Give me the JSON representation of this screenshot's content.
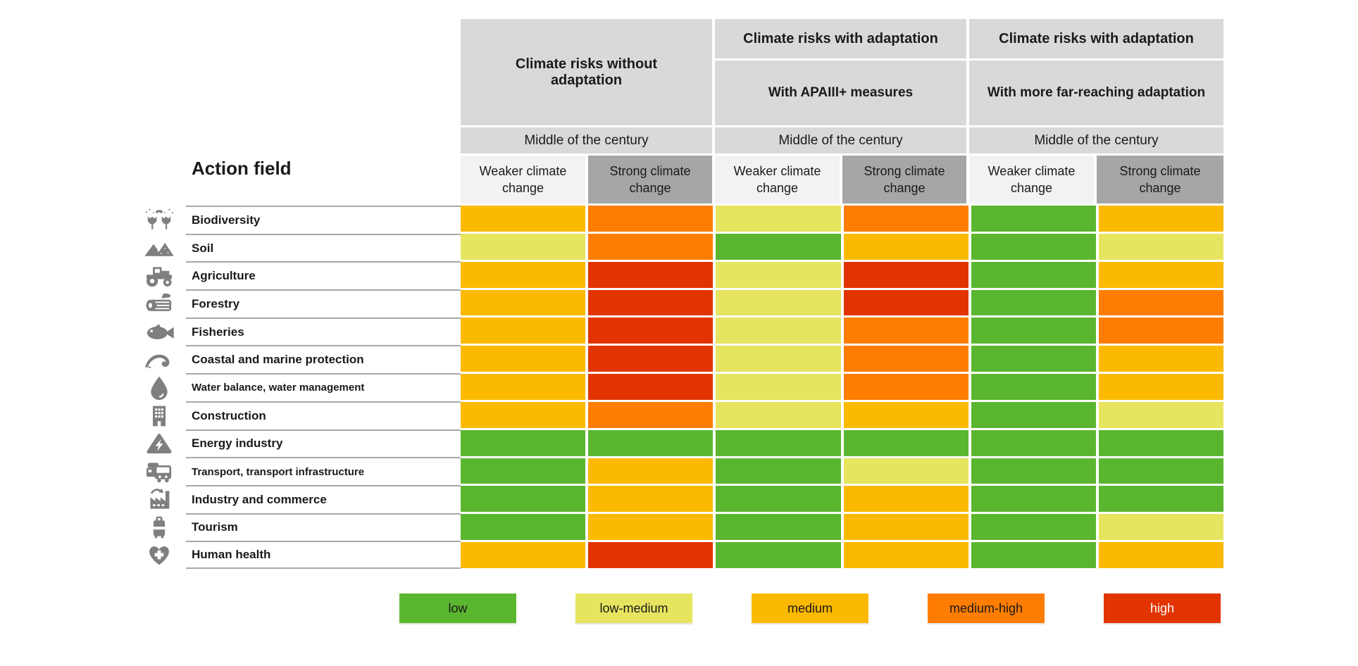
{
  "page": {
    "background": "#ffffff"
  },
  "chart_data": {
    "type": "heatmap",
    "title": "Action field",
    "column_groups": [
      {
        "title": "Climate risks without adaptation",
        "subtitle": "",
        "period": "Middle of the century"
      },
      {
        "title": "Climate risks with adaptation",
        "subtitle": "With APAIII+ measures",
        "period": "Middle of the century"
      },
      {
        "title": "Climate risks with adaptation",
        "subtitle": "With more far-reaching adaptation",
        "period": "Middle of the century"
      }
    ],
    "scenario_labels": [
      "Weaker climate change",
      "Strong climate change"
    ],
    "rows": [
      {
        "label": "Biodiversity",
        "icon": "flowers-butterfly-icon",
        "values": [
          "medium",
          "medium-high",
          "low-medium",
          "medium-high",
          "low",
          "medium"
        ]
      },
      {
        "label": "Soil",
        "icon": "mountains-icon",
        "values": [
          "low-medium",
          "medium-high",
          "low",
          "medium",
          "low",
          "low-medium"
        ]
      },
      {
        "label": "Agriculture",
        "icon": "tractor-icon",
        "values": [
          "medium",
          "high",
          "low-medium",
          "high",
          "low",
          "medium"
        ]
      },
      {
        "label": "Forestry",
        "icon": "log-icon",
        "values": [
          "medium",
          "high",
          "low-medium",
          "high",
          "low",
          "medium-high"
        ]
      },
      {
        "label": "Fisheries",
        "icon": "fish-icon",
        "values": [
          "medium",
          "high",
          "low-medium",
          "medium-high",
          "low",
          "medium-high"
        ]
      },
      {
        "label": "Coastal and marine protection",
        "icon": "wave-icon",
        "values": [
          "medium",
          "high",
          "low-medium",
          "medium-high",
          "low",
          "medium"
        ]
      },
      {
        "label": "Water balance, water management",
        "icon": "water-drop-icon",
        "values": [
          "medium",
          "high",
          "low-medium",
          "medium-high",
          "low",
          "medium"
        ]
      },
      {
        "label": "Construction",
        "icon": "building-icon",
        "values": [
          "medium",
          "medium-high",
          "low-medium",
          "medium",
          "low",
          "low-medium"
        ]
      },
      {
        "label": "Energy industry",
        "icon": "energy-warning-icon",
        "values": [
          "low",
          "low",
          "low",
          "low",
          "low",
          "low"
        ]
      },
      {
        "label": "Transport, transport infrastructure",
        "icon": "transport-icon",
        "values": [
          "low",
          "medium",
          "low",
          "low-medium",
          "low",
          "low"
        ]
      },
      {
        "label": "Industry and commerce",
        "icon": "factory-icon",
        "values": [
          "low",
          "medium",
          "low",
          "medium",
          "low",
          "low"
        ]
      },
      {
        "label": "Tourism",
        "icon": "suitcase-icon",
        "values": [
          "low",
          "medium",
          "low",
          "medium",
          "low",
          "low-medium"
        ]
      },
      {
        "label": "Human health",
        "icon": "heart-cross-icon",
        "values": [
          "medium",
          "high",
          "low",
          "medium",
          "low",
          "medium"
        ]
      }
    ],
    "levels": {
      "low": "#5bb62f",
      "low-medium": "#e7e45f",
      "medium": "#fbba00",
      "medium-high": "#ff7d00",
      "high": "#e23400"
    },
    "legend": [
      {
        "label": "low",
        "color": "#5bb62f",
        "text_color": "#1a1a1a"
      },
      {
        "label": "low-medium",
        "color": "#e7e45f",
        "text_color": "#1a1a1a"
      },
      {
        "label": "medium",
        "color": "#fbba00",
        "text_color": "#1a1a1a"
      },
      {
        "label": "medium-high",
        "color": "#ff7d00",
        "text_color": "#1a1a1a"
      },
      {
        "label": "high",
        "color": "#e23400",
        "text_color": "#ffffff"
      }
    ],
    "header_colors": {
      "group_box": "#d9d9d9",
      "weaker_box": "#f2f2f2",
      "strong_box": "#a6a6a6"
    }
  }
}
